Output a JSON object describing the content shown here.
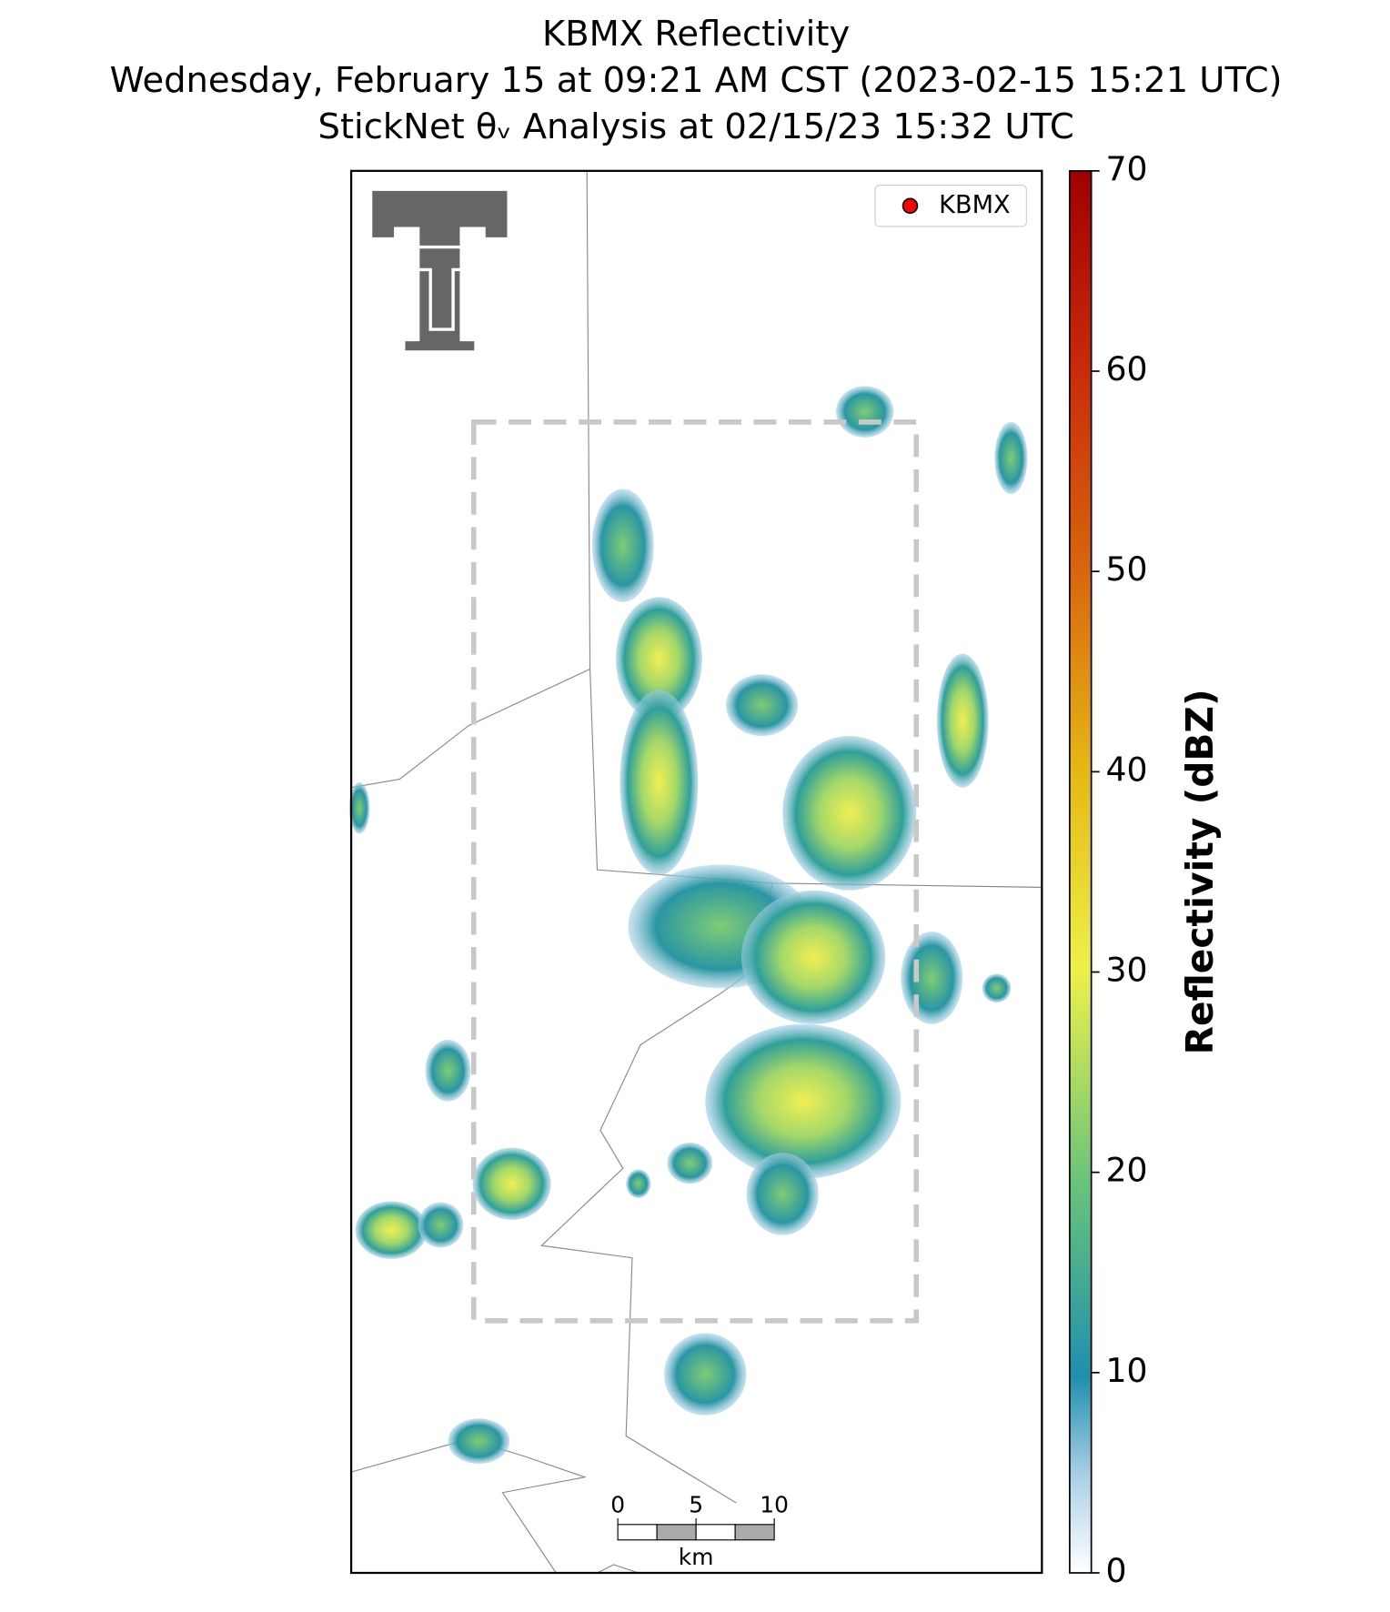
{
  "header": {
    "title": "KBMX Reflectivity",
    "subtitle": "Wednesday, February 15 at 09:21 AM CST (2023-02-15 15:21 UTC)",
    "analysis": "StickNet θᵥ Analysis at 02/15/23 15:32 UTC"
  },
  "legend": {
    "label": "KBMX",
    "color": "#ff0000"
  },
  "colorbar": {
    "label": "Reflectivity (dBZ)",
    "lim": [
      0,
      70
    ],
    "ticks": [
      0,
      10,
      20,
      30,
      40,
      50,
      60,
      70
    ]
  },
  "scale_bar": {
    "ticks": [
      0,
      5,
      10
    ],
    "unit": "km"
  }
}
